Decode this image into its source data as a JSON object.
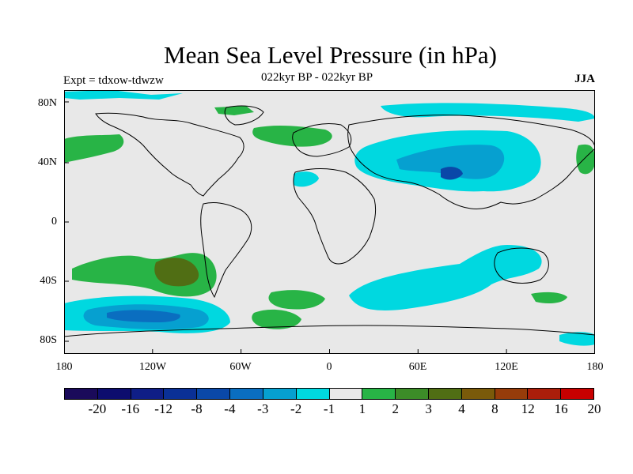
{
  "title": "Mean Sea Level Pressure (in hPa)",
  "subtitle": "022kyr BP - 022kyr BP",
  "experiment": "Expt = tdxow-tdwzw",
  "season": "JJA",
  "lat_labels": [
    "80N",
    "40N",
    "0",
    "40S",
    "80S"
  ],
  "lon_labels": [
    "180",
    "120W",
    "60W",
    "0",
    "60E",
    "120E",
    "180"
  ],
  "colorbar": {
    "labels": [
      "-20",
      "-16",
      "-12",
      "-8",
      "-4",
      "-3",
      "-2",
      "-1",
      "1",
      "2",
      "3",
      "4",
      "8",
      "12",
      "16",
      "20"
    ],
    "colors": [
      "#1a0a5a",
      "#0d0d6e",
      "#0f1e86",
      "#0a3096",
      "#0a48a8",
      "#0a6ec0",
      "#06a0d0",
      "#00d8e0",
      "#e8e8e8",
      "#28b446",
      "#3c8c28",
      "#506e14",
      "#7a5a0a",
      "#963c0a",
      "#aa1e0a",
      "#c80000"
    ]
  },
  "chart_data": {
    "type": "heatmap",
    "title": "Mean Sea Level Pressure (in hPa)",
    "projection": "cylindrical equidistant",
    "xlim": [
      -180,
      180
    ],
    "ylim": [
      -90,
      90
    ],
    "contour_levels": [
      -20,
      -16,
      -12,
      -8,
      -4,
      -3,
      -2,
      -1,
      1,
      2,
      3,
      4,
      8,
      12,
      16,
      20
    ],
    "anomaly_regions": [
      {
        "region": "South Pacific near 30S,110W",
        "range_hPa": "4 to 8"
      },
      {
        "region": "South Pacific 20-45S",
        "range_hPa": "2 to 3"
      },
      {
        "region": "Southern Ocean 50-70S, 180-100W",
        "range_hPa": "-3 to -4"
      },
      {
        "region": "Central Asia near 35N,85E",
        "range_hPa": "-4 to -8"
      },
      {
        "region": "Asia / Middle East 20-60N",
        "range_hPa": "-2 to -3"
      },
      {
        "region": "North Atlantic 45-60N",
        "range_hPa": "2 to 3"
      },
      {
        "region": "North Pacific near 45N,160W",
        "range_hPa": "2 to 3"
      }
    ]
  }
}
